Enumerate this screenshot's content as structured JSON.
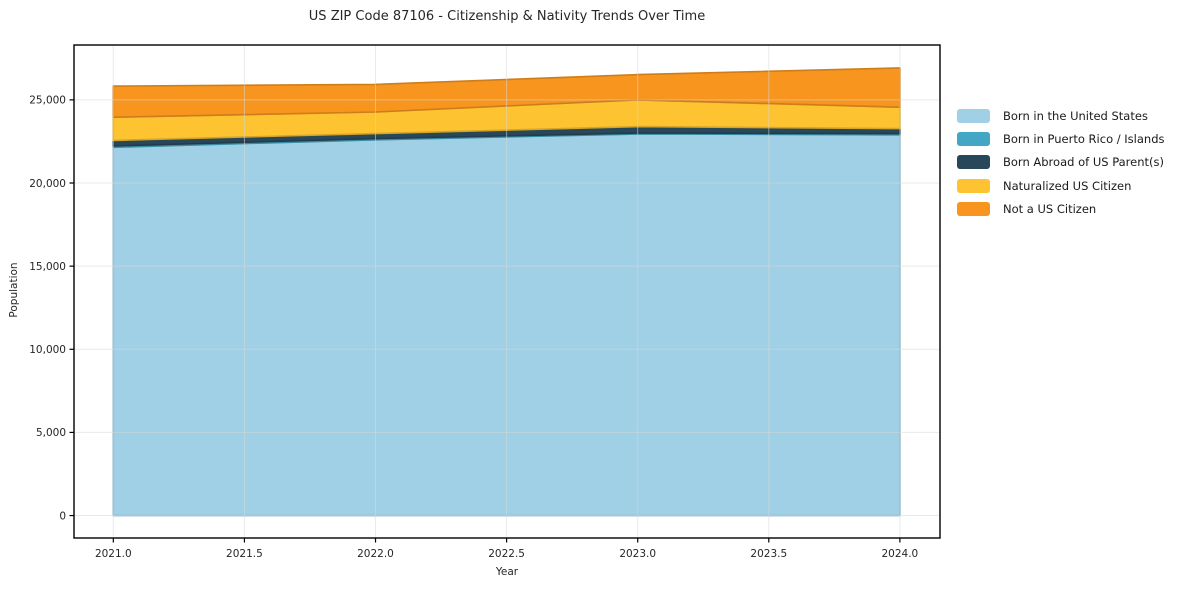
{
  "chart_data": {
    "type": "area",
    "stacked": true,
    "title": "US ZIP Code 87106 - Citizenship & Nativity Trends Over Time",
    "xlabel": "Year",
    "ylabel": "Population",
    "x": [
      2021,
      2022,
      2023,
      2024
    ],
    "series": [
      {
        "name": "Born in the United States",
        "color": "#a0d0e6",
        "values": [
          22150,
          22600,
          22950,
          22900
        ]
      },
      {
        "name": "Born in Puerto Rico / Islands",
        "color": "#41a7c4",
        "values": [
          80,
          70,
          60,
          70
        ]
      },
      {
        "name": "Born Abroad of US Parent(s)",
        "color": "#28485a",
        "values": [
          330,
          300,
          380,
          300
        ]
      },
      {
        "name": "Naturalized US Citizen",
        "color": "#fdc330",
        "values": [
          1400,
          1300,
          1610,
          1290
        ]
      },
      {
        "name": "Not a US Citizen",
        "color": "#f7951f",
        "values": [
          1870,
          1660,
          1520,
          2360
        ]
      }
    ],
    "totals": [
      25830,
      25930,
      26520,
      26920
    ],
    "xlim": [
      2020.85,
      2024.153
    ],
    "ylim": [
      -1350,
      28300
    ],
    "xticks": {
      "values": [
        2021.0,
        2021.5,
        2022.0,
        2022.5,
        2023.0,
        2023.5,
        2024.0
      ],
      "labels": [
        "2021.0",
        "2021.5",
        "2022.0",
        "2022.5",
        "2023.0",
        "2023.5",
        "2024.0"
      ]
    },
    "yticks": {
      "values": [
        0,
        5000,
        10000,
        15000,
        20000,
        25000
      ],
      "labels": [
        "0",
        "5,000",
        "10,000",
        "15,000",
        "20,000",
        "25,000"
      ]
    },
    "grid": true,
    "legend_position": "right",
    "plot_border_color": "#000000",
    "grid_color": "#d8d8d8",
    "text_color": "#262626"
  }
}
